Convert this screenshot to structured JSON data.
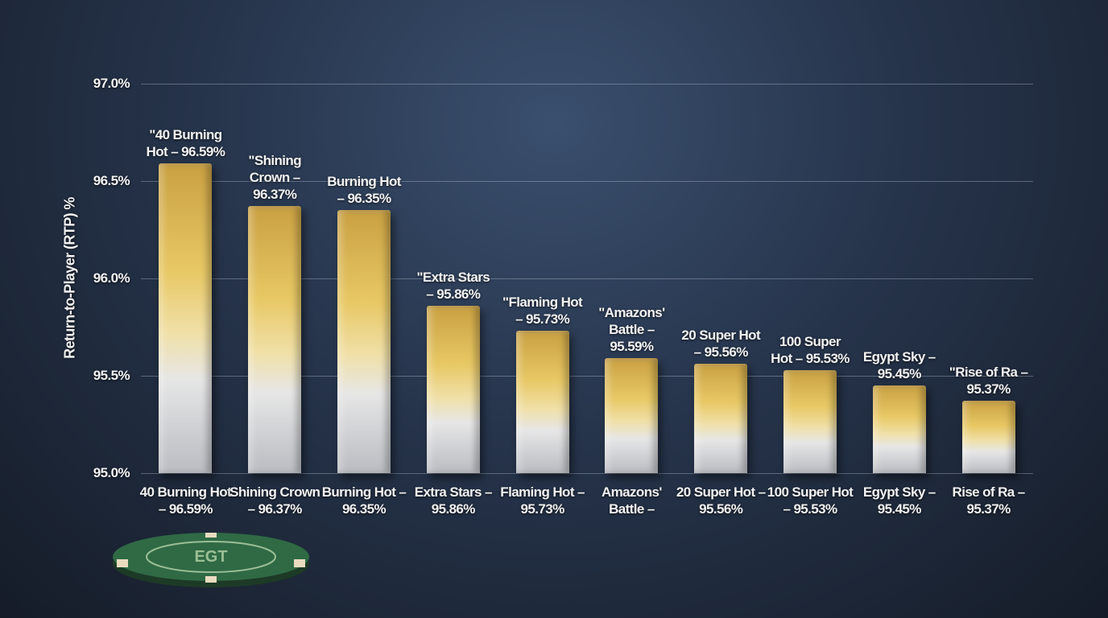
{
  "chart_data": {
    "type": "bar",
    "y_label": "Return-to-Player (RTP) %",
    "categories": [
      "40 Burning Hot – 96.59%",
      "Shining Crown – 96.37%",
      "Burning Hot – 96.35%",
      "Extra Stars – 95.86%",
      "Flaming Hot – 95.73%",
      "Amazons' Battle –",
      "20 Super Hot – 95.56%",
      "100 Super Hot – 95.53%",
      "Egypt Sky – 95.45%",
      "Rise of Ra – 95.37%"
    ],
    "values": [
      96.59,
      96.37,
      96.35,
      95.86,
      95.73,
      95.59,
      95.56,
      95.53,
      95.45,
      95.37
    ],
    "value_labels": [
      "\"40 Burning Hot – 96.59%",
      "\"Shining Crown – 96.37%",
      "Burning Hot – 96.35%",
      "\"Extra Stars – 95.86%",
      "\"Flaming Hot – 95.73%",
      "\"Amazons' Battle – 95.59%",
      "20 Super Hot – 95.56%",
      "100 Super Hot – 95.53%",
      "Egypt Sky – 95.45%",
      "\"Rise of Ra – 95.37%"
    ],
    "ylim": [
      95.0,
      97.0
    ],
    "yticks": [
      {
        "value": 95.0,
        "label": "95.0%"
      },
      {
        "value": 95.5,
        "label": "95.5%"
      },
      {
        "value": 96.0,
        "label": "96.0%"
      },
      {
        "value": 96.5,
        "label": "96.5%"
      },
      {
        "value": 97.0,
        "label": "97.0%"
      }
    ],
    "grid": true
  },
  "chip_label": "EGT"
}
